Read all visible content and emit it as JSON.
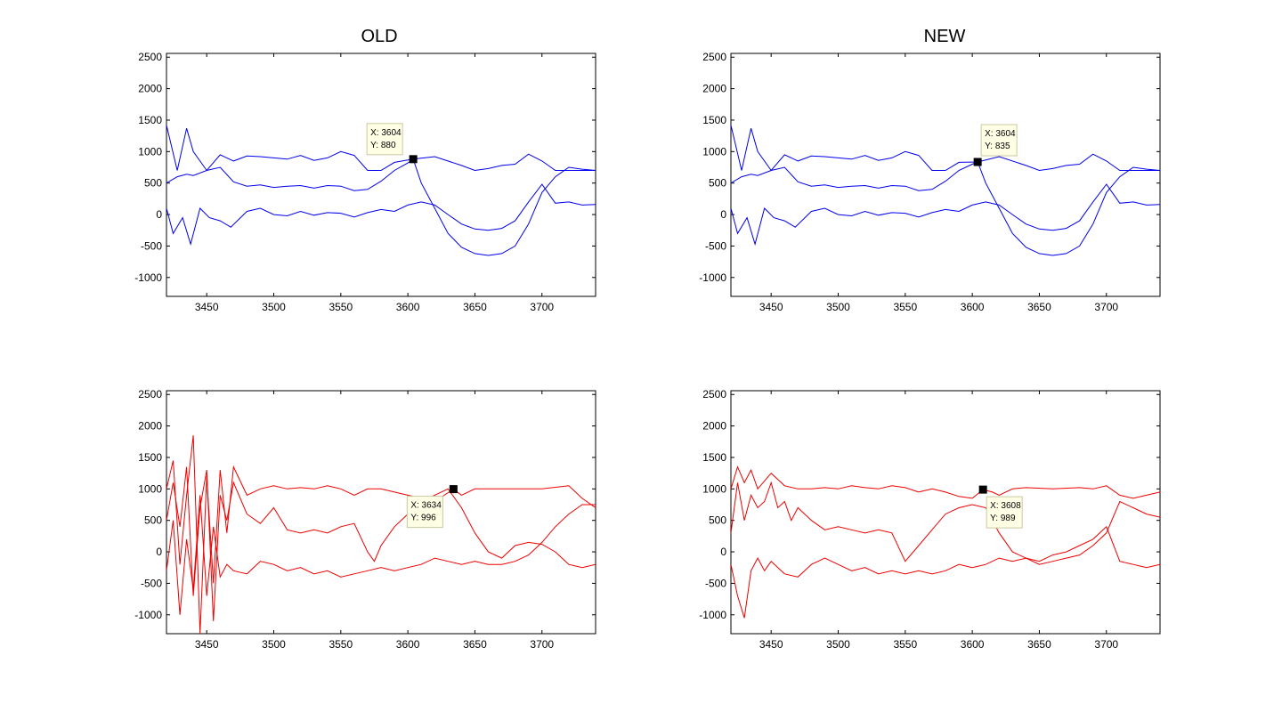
{
  "figure": {
    "titles": {
      "left": "OLD",
      "right": "NEW"
    }
  },
  "chart_data": [
    {
      "type": "line",
      "title": "OLD",
      "xlim": [
        3420,
        3740
      ],
      "ylim": [
        -1300,
        2560
      ],
      "xticks": [
        3450,
        3500,
        3550,
        3600,
        3650,
        3700
      ],
      "yticks": [
        -1000,
        -500,
        0,
        500,
        1000,
        1500,
        2000,
        2500
      ],
      "grid": false,
      "color": "#0000ee",
      "series": [
        {
          "x": [
            3420,
            3428,
            3435,
            3440,
            3450,
            3460,
            3470,
            3480,
            3490,
            3500,
            3510,
            3520,
            3530,
            3540,
            3550,
            3560,
            3570,
            3580,
            3590,
            3604,
            3620,
            3640,
            3650,
            3660,
            3670,
            3680,
            3690,
            3700,
            3710,
            3720,
            3730,
            3740
          ],
          "y": [
            1420,
            700,
            1370,
            1000,
            700,
            950,
            850,
            930,
            920,
            900,
            880,
            940,
            860,
            900,
            1000,
            940,
            700,
            700,
            830,
            880,
            920,
            780,
            700,
            730,
            780,
            800,
            960,
            850,
            700,
            700,
            700,
            700
          ]
        },
        {
          "x": [
            3420,
            3428,
            3435,
            3440,
            3450,
            3460,
            3470,
            3480,
            3490,
            3500,
            3510,
            3520,
            3530,
            3540,
            3550,
            3560,
            3570,
            3580,
            3590,
            3600,
            3604,
            3610,
            3620,
            3630,
            3640,
            3650,
            3660,
            3670,
            3680,
            3690,
            3700,
            3710,
            3720,
            3730,
            3740
          ],
          "y": [
            500,
            600,
            640,
            620,
            700,
            750,
            520,
            450,
            470,
            430,
            450,
            460,
            420,
            460,
            450,
            380,
            400,
            530,
            700,
            820,
            880,
            500,
            100,
            -300,
            -520,
            -620,
            -650,
            -620,
            -500,
            -150,
            350,
            600,
            750,
            720,
            700
          ]
        },
        {
          "x": [
            3420,
            3425,
            3432,
            3438,
            3445,
            3452,
            3460,
            3468,
            3480,
            3490,
            3500,
            3510,
            3520,
            3530,
            3540,
            3550,
            3560,
            3570,
            3580,
            3590,
            3600,
            3610,
            3620,
            3630,
            3640,
            3650,
            3660,
            3670,
            3680,
            3690,
            3700,
            3710,
            3720,
            3730,
            3740
          ],
          "y": [
            100,
            -300,
            -50,
            -470,
            100,
            -50,
            -100,
            -200,
            50,
            100,
            0,
            -20,
            50,
            -10,
            30,
            20,
            -40,
            30,
            80,
            50,
            150,
            200,
            150,
            0,
            -150,
            -230,
            -250,
            -220,
            -100,
            200,
            480,
            180,
            200,
            150,
            160
          ]
        }
      ],
      "datatip": {
        "x": 3604,
        "y": 880,
        "x_label": "X: 3604",
        "y_label": "Y: 880"
      }
    },
    {
      "type": "line",
      "title": "NEW",
      "xlim": [
        3420,
        3740
      ],
      "ylim": [
        -1300,
        2560
      ],
      "xticks": [
        3450,
        3500,
        3550,
        3600,
        3650,
        3700
      ],
      "yticks": [
        -1000,
        -500,
        0,
        500,
        1000,
        1500,
        2000,
        2500
      ],
      "grid": false,
      "color": "#0000ee",
      "series": [
        {
          "x": [
            3420,
            3428,
            3435,
            3440,
            3450,
            3460,
            3470,
            3480,
            3490,
            3500,
            3510,
            3520,
            3530,
            3540,
            3550,
            3560,
            3570,
            3580,
            3590,
            3604,
            3620,
            3640,
            3650,
            3660,
            3670,
            3680,
            3690,
            3700,
            3710,
            3720,
            3730,
            3740
          ],
          "y": [
            1420,
            700,
            1370,
            1000,
            700,
            950,
            850,
            930,
            920,
            900,
            880,
            940,
            860,
            900,
            1000,
            940,
            700,
            700,
            830,
            835,
            920,
            780,
            700,
            730,
            780,
            800,
            960,
            850,
            700,
            700,
            700,
            700
          ]
        },
        {
          "x": [
            3420,
            3428,
            3435,
            3440,
            3450,
            3460,
            3470,
            3480,
            3490,
            3500,
            3510,
            3520,
            3530,
            3540,
            3550,
            3560,
            3570,
            3580,
            3590,
            3600,
            3604,
            3610,
            3620,
            3630,
            3640,
            3650,
            3660,
            3670,
            3680,
            3690,
            3700,
            3710,
            3720,
            3730,
            3740
          ],
          "y": [
            500,
            600,
            640,
            620,
            700,
            750,
            520,
            450,
            470,
            430,
            450,
            460,
            420,
            460,
            450,
            380,
            400,
            530,
            700,
            800,
            835,
            500,
            100,
            -300,
            -520,
            -620,
            -650,
            -620,
            -500,
            -150,
            350,
            600,
            750,
            720,
            700
          ]
        },
        {
          "x": [
            3420,
            3425,
            3432,
            3438,
            3445,
            3452,
            3460,
            3468,
            3480,
            3490,
            3500,
            3510,
            3520,
            3530,
            3540,
            3550,
            3560,
            3570,
            3580,
            3590,
            3600,
            3610,
            3620,
            3630,
            3640,
            3650,
            3660,
            3670,
            3680,
            3690,
            3700,
            3710,
            3720,
            3730,
            3740
          ],
          "y": [
            100,
            -300,
            -50,
            -470,
            100,
            -50,
            -100,
            -200,
            50,
            100,
            0,
            -20,
            50,
            -10,
            30,
            20,
            -40,
            30,
            80,
            50,
            150,
            200,
            150,
            0,
            -150,
            -230,
            -250,
            -220,
            -100,
            200,
            480,
            180,
            200,
            150,
            160
          ]
        }
      ],
      "datatip": {
        "x": 3604,
        "y": 835,
        "x_label": "X: 3604",
        "y_label": "Y: 835"
      }
    },
    {
      "type": "line",
      "xlim": [
        3420,
        3740
      ],
      "ylim": [
        -1300,
        2560
      ],
      "xticks": [
        3450,
        3500,
        3550,
        3600,
        3650,
        3700
      ],
      "yticks": [
        -1000,
        -500,
        0,
        500,
        1000,
        1500,
        2000,
        2500
      ],
      "grid": false,
      "color": "#ee0000",
      "series": [
        {
          "x": [
            3420,
            3425,
            3430,
            3435,
            3440,
            3445,
            3450,
            3455,
            3460,
            3465,
            3470,
            3480,
            3490,
            3500,
            3510,
            3520,
            3530,
            3540,
            3550,
            3560,
            3570,
            3580,
            3590,
            3600,
            3610,
            3620,
            3634,
            3640,
            3650,
            3660,
            3680,
            3700,
            3720,
            3730,
            3740
          ],
          "y": [
            1000,
            1450,
            -200,
            900,
            1850,
            -1300,
            1200,
            -500,
            1300,
            300,
            1350,
            900,
            1000,
            1050,
            1000,
            1020,
            1000,
            1050,
            1000,
            900,
            1000,
            1000,
            950,
            900,
            850,
            800,
            996,
            900,
            1000,
            1000,
            1000,
            1000,
            1050,
            850,
            700
          ]
        },
        {
          "x": [
            3420,
            3425,
            3430,
            3435,
            3440,
            3445,
            3450,
            3455,
            3460,
            3465,
            3470,
            3480,
            3490,
            3500,
            3510,
            3520,
            3530,
            3540,
            3550,
            3560,
            3570,
            3575,
            3580,
            3590,
            3600,
            3610,
            3620,
            3630,
            3640,
            3650,
            3660,
            3670,
            3680,
            3690,
            3700,
            3710,
            3720,
            3730,
            3740
          ],
          "y": [
            500,
            1100,
            400,
            1350,
            -700,
            700,
            1300,
            -1100,
            900,
            500,
            1100,
            600,
            450,
            700,
            350,
            300,
            350,
            300,
            400,
            450,
            0,
            -150,
            100,
            400,
            600,
            800,
            900,
            1000,
            700,
            300,
            0,
            -100,
            100,
            150,
            120,
            0,
            -200,
            -250,
            -200
          ]
        },
        {
          "x": [
            3420,
            3425,
            3430,
            3435,
            3440,
            3445,
            3450,
            3455,
            3460,
            3465,
            3470,
            3480,
            3490,
            3500,
            3510,
            3520,
            3530,
            3540,
            3550,
            3560,
            3570,
            3580,
            3590,
            3600,
            3610,
            3620,
            3630,
            3640,
            3650,
            3660,
            3670,
            3680,
            3690,
            3700,
            3710,
            3720,
            3730,
            3740
          ],
          "y": [
            -300,
            500,
            -1000,
            200,
            -600,
            900,
            -700,
            400,
            -400,
            -200,
            -300,
            -350,
            -150,
            -200,
            -300,
            -250,
            -350,
            -300,
            -400,
            -350,
            -300,
            -250,
            -300,
            -250,
            -200,
            -100,
            -150,
            -200,
            -150,
            -200,
            -200,
            -150,
            -50,
            150,
            400,
            600,
            750,
            750
          ]
        }
      ],
      "datatip": {
        "x": 3634,
        "y": 996,
        "x_label": "X: 3634",
        "y_label": "Y: 996"
      }
    },
    {
      "type": "line",
      "xlim": [
        3420,
        3740
      ],
      "ylim": [
        -1300,
        2560
      ],
      "xticks": [
        3450,
        3500,
        3550,
        3600,
        3650,
        3700
      ],
      "yticks": [
        -1000,
        -500,
        0,
        500,
        1000,
        1500,
        2000,
        2500
      ],
      "grid": false,
      "color": "#ee0000",
      "series": [
        {
          "x": [
            3420,
            3425,
            3430,
            3435,
            3440,
            3450,
            3460,
            3470,
            3480,
            3490,
            3500,
            3510,
            3520,
            3530,
            3540,
            3550,
            3560,
            3570,
            3580,
            3590,
            3600,
            3608,
            3615,
            3620,
            3630,
            3640,
            3660,
            3680,
            3690,
            3700,
            3710,
            3720,
            3730,
            3740
          ],
          "y": [
            1000,
            1350,
            1100,
            1300,
            1000,
            1250,
            1050,
            1000,
            1000,
            1020,
            1000,
            1050,
            1020,
            1000,
            1050,
            1020,
            950,
            1000,
            950,
            880,
            850,
            989,
            950,
            900,
            1000,
            1020,
            1000,
            1020,
            1000,
            1050,
            900,
            850,
            900,
            950
          ]
        },
        {
          "x": [
            3420,
            3425,
            3430,
            3435,
            3440,
            3445,
            3450,
            3455,
            3460,
            3465,
            3470,
            3480,
            3490,
            3500,
            3510,
            3520,
            3530,
            3540,
            3550,
            3560,
            3570,
            3580,
            3590,
            3600,
            3610,
            3620,
            3630,
            3640,
            3650,
            3660,
            3670,
            3680,
            3690,
            3700,
            3710,
            3720,
            3730,
            3740
          ],
          "y": [
            300,
            1100,
            500,
            900,
            700,
            800,
            1100,
            700,
            800,
            500,
            700,
            500,
            350,
            400,
            350,
            300,
            350,
            300,
            -150,
            100,
            350,
            600,
            700,
            750,
            700,
            300,
            0,
            -100,
            -200,
            -150,
            -100,
            -50,
            100,
            300,
            800,
            700,
            600,
            550
          ]
        },
        {
          "x": [
            3420,
            3425,
            3430,
            3435,
            3440,
            3445,
            3450,
            3455,
            3460,
            3470,
            3480,
            3490,
            3500,
            3510,
            3520,
            3530,
            3540,
            3550,
            3560,
            3570,
            3580,
            3590,
            3600,
            3610,
            3620,
            3630,
            3640,
            3650,
            3660,
            3670,
            3680,
            3690,
            3700,
            3710,
            3720,
            3730,
            3740
          ],
          "y": [
            -200,
            -700,
            -1050,
            -300,
            -100,
            -300,
            -150,
            -250,
            -350,
            -400,
            -200,
            -100,
            -200,
            -300,
            -250,
            -350,
            -300,
            -350,
            -300,
            -350,
            -300,
            -200,
            -250,
            -200,
            -100,
            -150,
            -100,
            -150,
            -50,
            0,
            100,
            200,
            400,
            -150,
            -200,
            -250,
            -200
          ]
        }
      ],
      "datatip": {
        "x": 3608,
        "y": 989,
        "x_label": "X: 3608",
        "y_label": "Y: 989"
      }
    }
  ]
}
